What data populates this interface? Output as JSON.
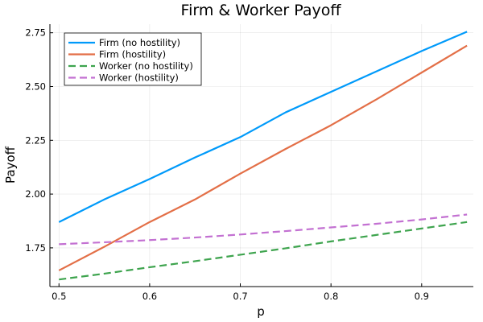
{
  "chart_data": {
    "type": "line",
    "title": "Firm & Worker Payoff",
    "xlabel": "p",
    "ylabel": "Payoff",
    "xlim": [
      0.49,
      0.957
    ],
    "ylim": [
      1.57,
      2.79
    ],
    "xticks": [
      0.5,
      0.6,
      0.7,
      0.8,
      0.9
    ],
    "xtick_labels": [
      "0.5",
      "0.6",
      "0.7",
      "0.8",
      "0.9"
    ],
    "yticks": [
      1.75,
      2.0,
      2.25,
      2.5,
      2.75
    ],
    "ytick_labels": [
      "1.75",
      "2.00",
      "2.25",
      "2.50",
      "2.75"
    ],
    "grid": true,
    "legend_position": "top-left",
    "x": [
      0.5,
      0.55,
      0.6,
      0.65,
      0.7,
      0.75,
      0.8,
      0.85,
      0.9,
      0.95
    ],
    "series": [
      {
        "name": "Firm (no hostility)",
        "color": "#009AFA",
        "dash": "solid",
        "values": [
          1.87,
          1.975,
          2.07,
          2.17,
          2.265,
          2.38,
          2.475,
          2.57,
          2.665,
          2.755
        ]
      },
      {
        "name": "Firm (hostility)",
        "color": "#E36F47",
        "dash": "solid",
        "values": [
          1.645,
          1.755,
          1.87,
          1.975,
          2.095,
          2.21,
          2.32,
          2.44,
          2.565,
          2.69
        ]
      },
      {
        "name": "Worker (no hostility)",
        "color": "#3EA44E",
        "dash": "dashed",
        "values": [
          1.603,
          1.63,
          1.66,
          1.688,
          1.718,
          1.748,
          1.78,
          1.81,
          1.84,
          1.87
        ]
      },
      {
        "name": "Worker (hostility)",
        "color": "#C371D2",
        "dash": "dashed",
        "values": [
          1.767,
          1.776,
          1.786,
          1.798,
          1.812,
          1.828,
          1.845,
          1.862,
          1.882,
          1.905
        ]
      }
    ]
  }
}
